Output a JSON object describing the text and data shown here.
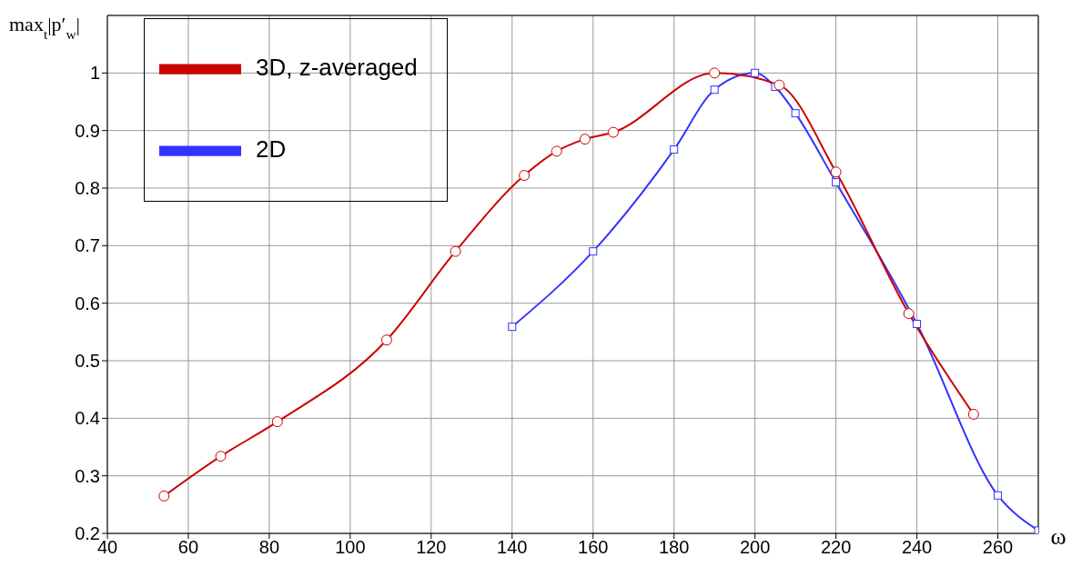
{
  "chart_data": {
    "type": "line",
    "ylabel": "max$_{t}$|p′$_{w}$|",
    "xlabel": "ω",
    "xlim": [
      40,
      270
    ],
    "xticks": [
      40,
      60,
      80,
      100,
      120,
      140,
      160,
      180,
      200,
      220,
      240,
      260
    ],
    "ylim": [
      0.2,
      1.1
    ],
    "yticks": [
      0.2,
      0.3,
      0.4,
      0.5,
      0.6,
      0.7,
      0.8,
      0.9,
      1
    ],
    "grid": true,
    "legend": "top left",
    "line_style": "solid",
    "series": [
      {
        "name": "3D, z-averaged",
        "color": "#cc0000",
        "marker": "circle",
        "x": [
          54,
          68,
          82,
          109,
          126,
          143,
          151,
          158,
          165,
          190,
          206,
          220,
          238,
          254
        ],
        "values": [
          0.265,
          0.334,
          0.394,
          0.536,
          0.69,
          0.822,
          0.864,
          0.885,
          0.897,
          1.0,
          0.979,
          0.828,
          0.582,
          0.407
        ]
      },
      {
        "name": "2D",
        "color": "#3333ff",
        "marker": "square",
        "x": [
          140,
          160,
          180,
          190,
          200,
          205,
          210,
          220,
          240,
          260,
          270
        ],
        "values": [
          0.559,
          0.69,
          0.867,
          0.971,
          1.0,
          0.976,
          0.93,
          0.81,
          0.564,
          0.266,
          0.205
        ]
      }
    ]
  }
}
